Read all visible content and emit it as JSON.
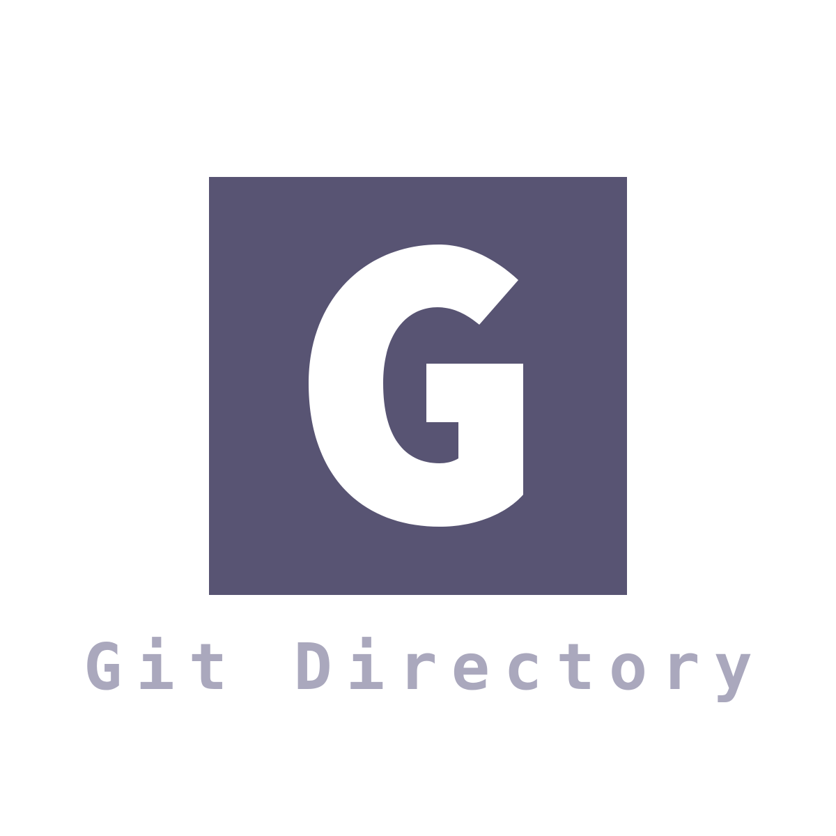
{
  "logo": {
    "letter": "G",
    "tile_color": "#585473",
    "letter_color": "#ffffff",
    "icon": "letter-g-logo"
  },
  "brand": {
    "name": "Git Directory",
    "color": "#aaa8bd"
  }
}
